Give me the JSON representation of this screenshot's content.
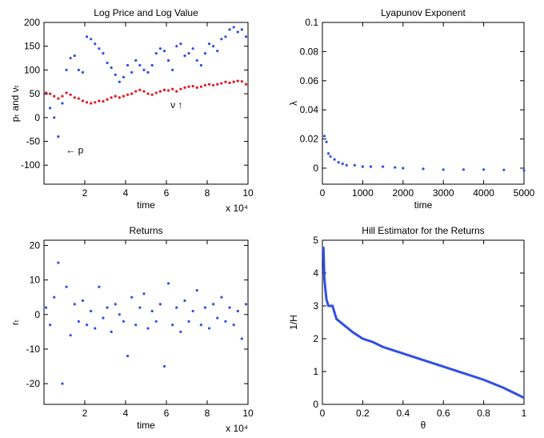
{
  "chart_data": [
    {
      "type": "scatter",
      "title": "Log Price and Log Value",
      "xlabel": "time",
      "ylabel": "pₜ and νₜ",
      "x_multiplier": "x 10⁴",
      "x": [
        1000,
        3000,
        5000,
        7000,
        9000,
        11000,
        13000,
        15000,
        17000,
        19000,
        21000,
        23000,
        25000,
        27000,
        29000,
        31000,
        33000,
        35000,
        37000,
        39000,
        41000,
        43000,
        45000,
        47000,
        49000,
        51000,
        53000,
        55000,
        57000,
        59000,
        61000,
        63000,
        65000,
        67000,
        69000,
        71000,
        73000,
        75000,
        77000,
        79000,
        81000,
        83000,
        85000,
        87000,
        89000,
        91000,
        93000,
        95000,
        97000,
        99000
      ],
      "series": [
        {
          "color": "#2f4fe6",
          "values": [
            50,
            20,
            0,
            -40,
            30,
            100,
            125,
            130,
            100,
            95,
            170,
            165,
            155,
            145,
            135,
            115,
            105,
            90,
            75,
            85,
            110,
            95,
            120,
            110,
            100,
            95,
            110,
            135,
            145,
            140,
            120,
            100,
            150,
            155,
            130,
            135,
            145,
            120,
            110,
            135,
            155,
            150,
            140,
            165,
            170,
            185,
            190,
            180,
            185,
            170
          ]
        },
        {
          "color": "#e8141e",
          "values": [
            52,
            50,
            45,
            40,
            45,
            52,
            48,
            42,
            40,
            35,
            32,
            30,
            32,
            35,
            34,
            38,
            42,
            45,
            42,
            45,
            48,
            50,
            55,
            58,
            55,
            50,
            48,
            52,
            55,
            58,
            57,
            60,
            55,
            60,
            63,
            65,
            66,
            63,
            65,
            68,
            70,
            68,
            70,
            72,
            75,
            73,
            75,
            77,
            76,
            70
          ]
        }
      ],
      "annotations": [
        {
          "text": "← p",
          "x": 15000,
          "y": -75
        },
        {
          "text": "ν ↑",
          "x": 65000,
          "y": 20
        }
      ],
      "xlim": [
        0,
        100000
      ],
      "xticks": [
        {
          "value": 20000,
          "label": "2"
        },
        {
          "value": 40000,
          "label": "4"
        },
        {
          "value": 60000,
          "label": "6"
        },
        {
          "value": 80000,
          "label": "8"
        },
        {
          "value": 100000,
          "label": "10"
        }
      ],
      "ylim": [
        -140,
        200
      ],
      "yticks": [
        -100,
        -50,
        0,
        50,
        100,
        150,
        200
      ]
    },
    {
      "type": "scatter",
      "title": "Lyapunov Exponent",
      "xlabel": "time",
      "ylabel": "λ",
      "x": [
        50,
        100,
        150,
        200,
        300,
        400,
        500,
        600,
        800,
        1000,
        1200,
        1500,
        1800,
        2000,
        2500,
        3000,
        3500,
        4000,
        4500,
        5000
      ],
      "series": [
        {
          "color": "#2f4fe6",
          "values": [
            0.022,
            0.018,
            0.01,
            0.008,
            0.006,
            0.004,
            0.003,
            0.002,
            0.002,
            0.001,
            0.001,
            0.001,
            0.0005,
            0,
            -0.0005,
            -0.001,
            -0.001,
            -0.001,
            -0.0012,
            -0.0015
          ]
        }
      ],
      "xlim": [
        0,
        5000
      ],
      "xticks": [
        0,
        1000,
        2000,
        3000,
        4000,
        5000
      ],
      "ylim": [
        -0.011,
        0.1
      ],
      "yticks": [
        0,
        0.02,
        0.04,
        0.06,
        0.08,
        0.1
      ]
    },
    {
      "type": "scatter",
      "title": "Returns",
      "xlabel": "time",
      "ylabel": "rₜ",
      "x_multiplier": "x 10⁴",
      "x": [
        1000,
        3000,
        5000,
        7000,
        9000,
        11000,
        13000,
        15000,
        17000,
        19000,
        21000,
        23000,
        25000,
        27000,
        29000,
        31000,
        33000,
        35000,
        37000,
        39000,
        41000,
        43000,
        45000,
        47000,
        49000,
        51000,
        53000,
        55000,
        57000,
        59000,
        61000,
        63000,
        65000,
        67000,
        69000,
        71000,
        73000,
        75000,
        77000,
        79000,
        81000,
        83000,
        85000,
        87000,
        89000,
        91000,
        93000,
        95000,
        97000,
        99000
      ],
      "series": [
        {
          "color": "#2f4fe6",
          "values": [
            2,
            -3,
            5,
            15,
            -20,
            8,
            -6,
            3,
            -2,
            4,
            -3,
            1,
            -4,
            8,
            -1,
            2,
            -5,
            3,
            0,
            -2,
            -12,
            5,
            -3,
            2,
            6,
            -4,
            1,
            -2,
            3,
            -15,
            9,
            -3,
            2,
            -5,
            4,
            -2,
            1,
            7,
            -3,
            2,
            -4,
            3,
            -1,
            5,
            -2,
            2,
            -3,
            1,
            -7,
            3
          ]
        }
      ],
      "xlim": [
        0,
        100000
      ],
      "xticks": [
        {
          "value": 20000,
          "label": "2"
        },
        {
          "value": 40000,
          "label": "4"
        },
        {
          "value": 60000,
          "label": "6"
        },
        {
          "value": 80000,
          "label": "8"
        },
        {
          "value": 100000,
          "label": "10"
        }
      ],
      "ylim": [
        -26,
        21.5
      ],
      "yticks": [
        -20,
        -10,
        0,
        10,
        20
      ]
    },
    {
      "type": "line",
      "title": "Hill Estimator for the Returns",
      "xlabel": "θ",
      "ylabel": "1/H",
      "x": [
        0.005,
        0.01,
        0.02,
        0.03,
        0.05,
        0.07,
        0.1,
        0.15,
        0.2,
        0.25,
        0.3,
        0.4,
        0.5,
        0.6,
        0.7,
        0.8,
        0.9,
        0.95,
        1.0
      ],
      "series": [
        {
          "color": "#2f4fe6",
          "values": [
            4.8,
            3.8,
            3.2,
            3.0,
            3.0,
            2.6,
            2.45,
            2.2,
            2.0,
            1.9,
            1.75,
            1.55,
            1.35,
            1.15,
            0.95,
            0.75,
            0.5,
            0.35,
            0.2
          ]
        }
      ],
      "xlim": [
        0,
        1
      ],
      "xticks": [
        0,
        0.2,
        0.4,
        0.6,
        0.8,
        1
      ],
      "ylim": [
        0,
        5
      ],
      "yticks": [
        0,
        1,
        2,
        3,
        4,
        5
      ]
    }
  ]
}
